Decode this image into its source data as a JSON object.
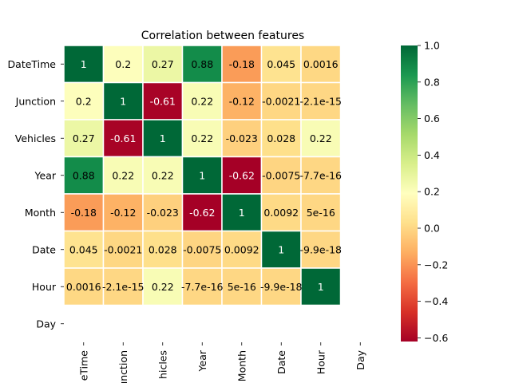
{
  "chart_data": {
    "type": "heatmap",
    "title": "Correlation between features",
    "rows": [
      "DateTime",
      "Junction",
      "Vehicles",
      "Year",
      "Month",
      "Date",
      "Hour",
      "Day"
    ],
    "cols": [
      "DateTime",
      "Junction",
      "Vehicles",
      "Year",
      "Month",
      "Date",
      "Hour",
      "Day"
    ],
    "col_tick_labels": [
      "eTime",
      "unction",
      "hicles",
      "Year",
      "Month",
      "Date",
      "Hour",
      "Day"
    ],
    "values": [
      [
        1,
        0.2,
        0.27,
        0.88,
        -0.18,
        0.045,
        0.0016,
        null
      ],
      [
        0.2,
        1,
        -0.61,
        0.22,
        -0.12,
        -0.0021,
        -2.1e-15,
        null
      ],
      [
        0.27,
        -0.61,
        1,
        0.22,
        -0.023,
        0.028,
        0.22,
        null
      ],
      [
        0.88,
        0.22,
        0.22,
        1,
        -0.62,
        -0.0075,
        -7.7e-16,
        null
      ],
      [
        -0.18,
        -0.12,
        -0.023,
        -0.62,
        1,
        0.0092,
        5e-16,
        null
      ],
      [
        0.045,
        -0.0021,
        0.028,
        -0.0075,
        0.0092,
        1,
        -9.9e-18,
        null
      ],
      [
        0.0016,
        -2.1e-15,
        0.22,
        -7.7e-16,
        5e-16,
        -9.9e-18,
        1,
        null
      ],
      [
        null,
        null,
        null,
        null,
        null,
        null,
        null,
        null
      ]
    ],
    "annotations": [
      [
        "1",
        "0.2",
        "0.27",
        "0.88",
        "-0.18",
        "0.045",
        "0.0016",
        ""
      ],
      [
        "0.2",
        "1",
        "-0.61",
        "0.22",
        "-0.12",
        "-0.0021",
        "-2.1e-15",
        ""
      ],
      [
        "0.27",
        "-0.61",
        "1",
        "0.22",
        "-0.023",
        "0.028",
        "0.22",
        ""
      ],
      [
        "0.88",
        "0.22",
        "0.22",
        "1",
        "-0.62",
        "-0.0075",
        "-7.7e-16",
        ""
      ],
      [
        "-0.18",
        "-0.12",
        "-0.023",
        "-0.62",
        "1",
        "0.0092",
        "5e-16",
        ""
      ],
      [
        "0.045",
        "-0.0021",
        "0.028",
        "-0.0075",
        "0.0092",
        "1",
        "-9.9e-18",
        ""
      ],
      [
        "0.0016",
        "-2.1e-15",
        "0.22",
        "-7.7e-16",
        "5e-16",
        "-9.9e-18",
        "1",
        ""
      ],
      [
        "",
        "",
        "",
        "",
        "",
        "",
        "",
        ""
      ]
    ],
    "colormap": "RdYlGn",
    "vmin": -0.62,
    "vmax": 1.0,
    "colorbar_ticks": [
      1.0,
      0.8,
      0.6,
      0.4,
      0.2,
      0.0,
      -0.2,
      -0.4,
      -0.6
    ],
    "colorbar_tick_labels": [
      "1.0",
      "0.8",
      "0.6",
      "0.4",
      "0.2",
      "0.0",
      "−0.2",
      "−0.4",
      "−0.6"
    ],
    "cell_border_color": "#ffffff",
    "grid": false,
    "legend": "colorbar-right"
  }
}
